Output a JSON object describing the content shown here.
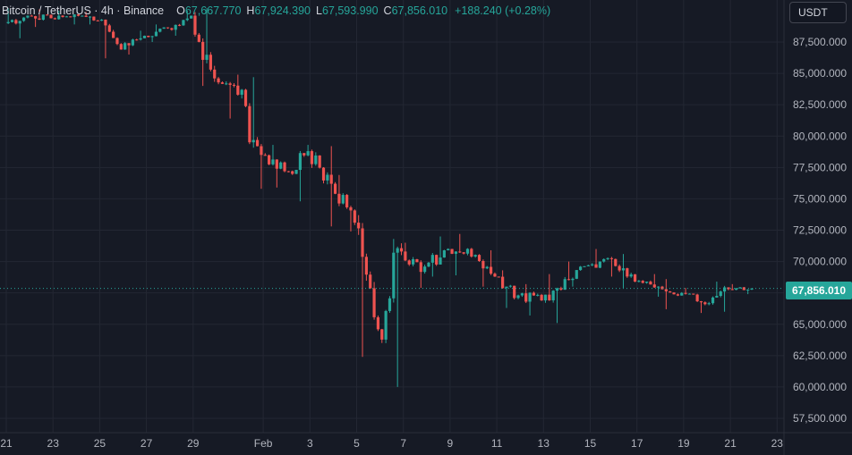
{
  "header": {
    "symbol": "Bitcoin / TetherUS · 4h · Binance",
    "open_label": "O",
    "open_value": "67,667.770",
    "high_label": "H",
    "high_value": "67,924.390",
    "low_label": "L",
    "low_value": "67,593.990",
    "close_label": "C",
    "close_value": "67,856.010",
    "change": "+188.240 (+0.28%)"
  },
  "currency_button": "USDT",
  "last_price_label": "67,856.010",
  "colors": {
    "background": "#161a25",
    "up": "#26a69a",
    "down": "#ef5350",
    "grid": "#232733",
    "axis_text": "#b2b5be"
  },
  "chart_data": {
    "type": "candlestick",
    "title": "Bitcoin / TetherUS · 4h · Binance",
    "y_axis": {
      "ticks": [
        57500,
        60000,
        62500,
        65000,
        67500,
        70000,
        72500,
        75000,
        77500,
        80000,
        82500,
        85000,
        87500
      ],
      "tick_labels": [
        "57,500.000",
        "60,000.000",
        "62,500.000",
        "65,000.000",
        "67,500.000",
        "70,000.000",
        "72,500.000",
        "75,000.000",
        "77,500.000",
        "80,000.000",
        "82,500.000",
        "85,000.000",
        "87,500.000"
      ],
      "range": [
        56500,
        90500
      ]
    },
    "x_axis": {
      "tick_labels": [
        "21",
        "23",
        "25",
        "27",
        "29",
        "Feb",
        "3",
        "5",
        "7",
        "9",
        "11",
        "13",
        "15",
        "17",
        "19",
        "21",
        "23"
      ],
      "range_days": "Jan 21 – Feb 23"
    },
    "grid": true,
    "last_price": 67856.01,
    "candles_daily_summary": [
      {
        "date": "Jan 21",
        "open": 89000,
        "high": 90200,
        "low": 87800,
        "close": 89600
      },
      {
        "date": "Jan 22",
        "open": 89600,
        "high": 90100,
        "low": 88700,
        "close": 89400
      },
      {
        "date": "Jan 23",
        "open": 89400,
        "high": 90000,
        "low": 88900,
        "close": 89700
      },
      {
        "date": "Jan 24",
        "open": 89700,
        "high": 89900,
        "low": 88900,
        "close": 89200
      },
      {
        "date": "Jan 25",
        "open": 89200,
        "high": 89300,
        "low": 86200,
        "close": 86900
      },
      {
        "date": "Jan 26",
        "open": 86900,
        "high": 88400,
        "low": 86500,
        "close": 88000
      },
      {
        "date": "Jan 27",
        "open": 88000,
        "high": 88900,
        "low": 87500,
        "close": 88600
      },
      {
        "date": "Jan 28",
        "open": 88600,
        "high": 90000,
        "low": 88000,
        "close": 89600
      },
      {
        "date": "Jan 29",
        "open": 89600,
        "high": 90200,
        "low": 84000,
        "close": 84600
      },
      {
        "date": "Jan 30",
        "open": 84600,
        "high": 84900,
        "low": 81400,
        "close": 83300
      },
      {
        "date": "Jan 31",
        "open": 83300,
        "high": 84700,
        "low": 75800,
        "close": 78500
      },
      {
        "date": "Feb 1",
        "open": 78500,
        "high": 79300,
        "low": 75900,
        "close": 77200
      },
      {
        "date": "Feb 2",
        "open": 77200,
        "high": 79300,
        "low": 74800,
        "close": 78800
      },
      {
        "date": "Feb 3",
        "open": 78800,
        "high": 79200,
        "low": 72800,
        "close": 76200
      },
      {
        "date": "Feb 4",
        "open": 76200,
        "high": 76900,
        "low": 72400,
        "close": 73100
      },
      {
        "date": "Feb 5",
        "open": 73100,
        "high": 73700,
        "low": 62400,
        "close": 64600
      },
      {
        "date": "Feb 6",
        "open": 64600,
        "high": 71800,
        "low": 60000,
        "close": 70800
      },
      {
        "date": "Feb 7",
        "open": 70800,
        "high": 71500,
        "low": 67900,
        "close": 69600
      },
      {
        "date": "Feb 8",
        "open": 69600,
        "high": 72000,
        "low": 68800,
        "close": 71000
      },
      {
        "date": "Feb 9",
        "open": 71000,
        "high": 72200,
        "low": 68900,
        "close": 70400
      },
      {
        "date": "Feb 10",
        "open": 70400,
        "high": 70900,
        "low": 68000,
        "close": 68800
      },
      {
        "date": "Feb 11",
        "open": 68800,
        "high": 69300,
        "low": 66300,
        "close": 67300
      },
      {
        "date": "Feb 12",
        "open": 67300,
        "high": 68200,
        "low": 65700,
        "close": 66900
      },
      {
        "date": "Feb 13",
        "open": 66900,
        "high": 69000,
        "low": 65100,
        "close": 68600
      },
      {
        "date": "Feb 14",
        "open": 68600,
        "high": 70000,
        "low": 68000,
        "close": 69700
      },
      {
        "date": "Feb 15",
        "open": 69700,
        "high": 71000,
        "low": 68800,
        "close": 70200
      },
      {
        "date": "Feb 16",
        "open": 70200,
        "high": 70600,
        "low": 67900,
        "close": 68400
      },
      {
        "date": "Feb 17",
        "open": 68400,
        "high": 69000,
        "low": 67200,
        "close": 68000
      },
      {
        "date": "Feb 18",
        "open": 68000,
        "high": 68600,
        "low": 66200,
        "close": 67500
      },
      {
        "date": "Feb 19",
        "open": 67500,
        "high": 67900,
        "low": 65900,
        "close": 66600
      },
      {
        "date": "Feb 20",
        "open": 66600,
        "high": 68400,
        "low": 66000,
        "close": 67800
      },
      {
        "date": "Feb 21",
        "open": 67800,
        "high": 68200,
        "low": 67400,
        "close": 67856
      }
    ]
  }
}
